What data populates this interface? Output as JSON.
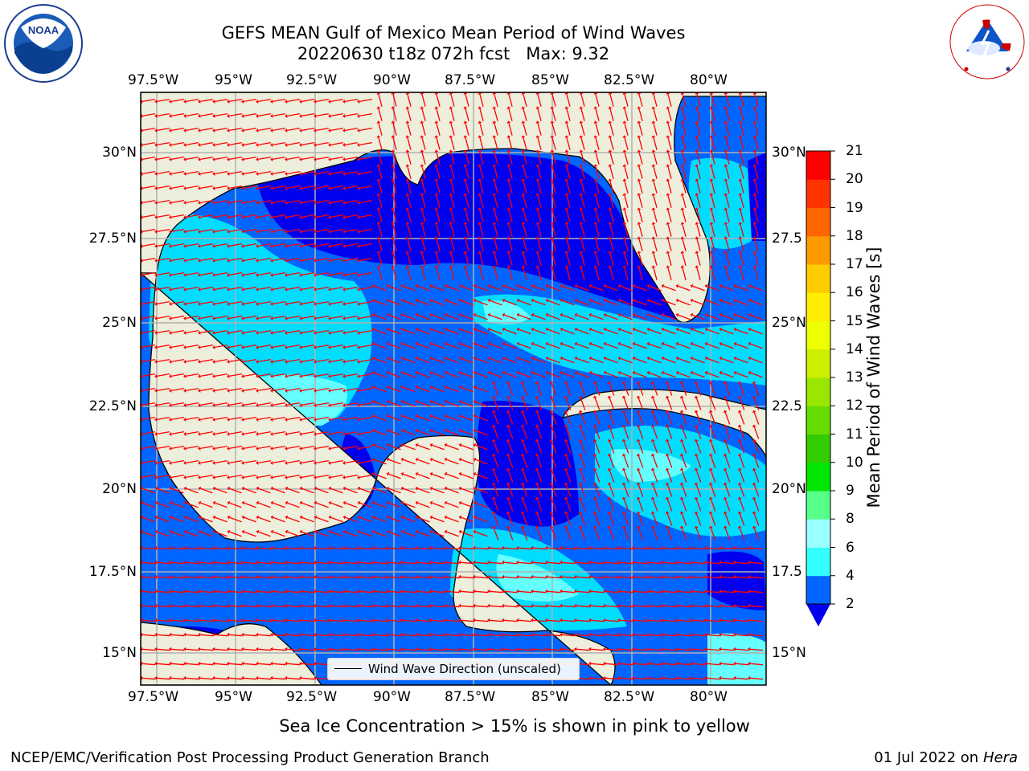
{
  "header": {
    "title_line1": "GEFS MEAN Gulf of Mexico Mean Period of Wind Waves",
    "title_line2": "20220630 t18z 072h fcst   Max: 9.32"
  },
  "logos": {
    "noaa_logo_text": "NOAA",
    "noaa_ring_text": "NATIONAL OCEANIC AND ATMOSPHERIC ADMINISTRATION · U.S. DEPARTMENT OF COMMERCE",
    "nws_logo_text": "NATIONAL WEATHER SERVICE"
  },
  "map": {
    "lon_labels": [
      "97.5°W",
      "95°W",
      "92.5°W",
      "90°W",
      "87.5°W",
      "85°W",
      "82.5°W",
      "80°W"
    ],
    "lat_labels": [
      "30°N",
      "27.5°N",
      "25°N",
      "22.5°N",
      "20°N",
      "17.5°N",
      "15°N"
    ],
    "lat_labels_right": [
      "30°N",
      "27.5",
      "25°N",
      "22.5",
      "20°N",
      "17.5",
      "15°N"
    ],
    "legend_label": "Wind Wave Direction (unscaled)"
  },
  "colorbar": {
    "label": "Mean Period of Wind Waves [s]",
    "ticks": [
      "2",
      "4",
      "6",
      "8",
      "9",
      "10",
      "11",
      "12",
      "13",
      "14",
      "15",
      "16",
      "17",
      "18",
      "19",
      "20",
      "21"
    ],
    "colors": [
      "#0066ff",
      "#00ccff",
      "#33ffff",
      "#99ffff",
      "#55ff88",
      "#00e600",
      "#33cc00",
      "#66dd00",
      "#99e600",
      "#ccee00",
      "#eeff00",
      "#ffee00",
      "#ffcc00",
      "#ff9900",
      "#ff6600",
      "#ff3300",
      "#ff0000"
    ],
    "extend_color": "#0000ee"
  },
  "map_colors": {
    "land": "#eeeedc",
    "level_1": "#0000ee",
    "level_2": "#0066ff",
    "level_3": "#00ddff",
    "level_4": "#66ffff",
    "arrows": "#ff0000"
  },
  "notes": {
    "sea_ice": "Sea Ice Concentration > 15% is shown in pink to yellow"
  },
  "footer": {
    "left": "NCEP/EMC/Verification Post Processing Product Generation Branch",
    "right_date": "01 Jul 2022 on ",
    "right_host": "Hera"
  }
}
